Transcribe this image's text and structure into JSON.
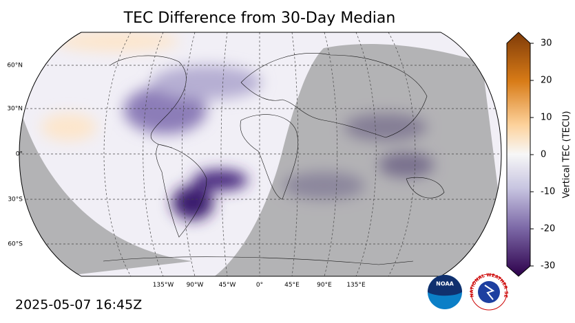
{
  "title": "TEC Difference from 30-Day Median",
  "map": {
    "lat_labels": [
      "60°N",
      "30°N",
      "0°",
      "30°S",
      "60°S"
    ],
    "lon_labels": [
      "135°W",
      "90°W",
      "45°W",
      "0°",
      "45°E",
      "90°E",
      "135°E"
    ]
  },
  "colorbar": {
    "label": "Vertical TEC (TECU)",
    "range": [
      -30,
      30
    ],
    "ticks": [
      30,
      20,
      10,
      0,
      -10,
      -20,
      -30
    ]
  },
  "timestamp": "2025-05-07 16:45Z",
  "logos": {
    "noaa": "NOAA",
    "nws": "NATIONAL WEATHER SERVICE"
  }
}
